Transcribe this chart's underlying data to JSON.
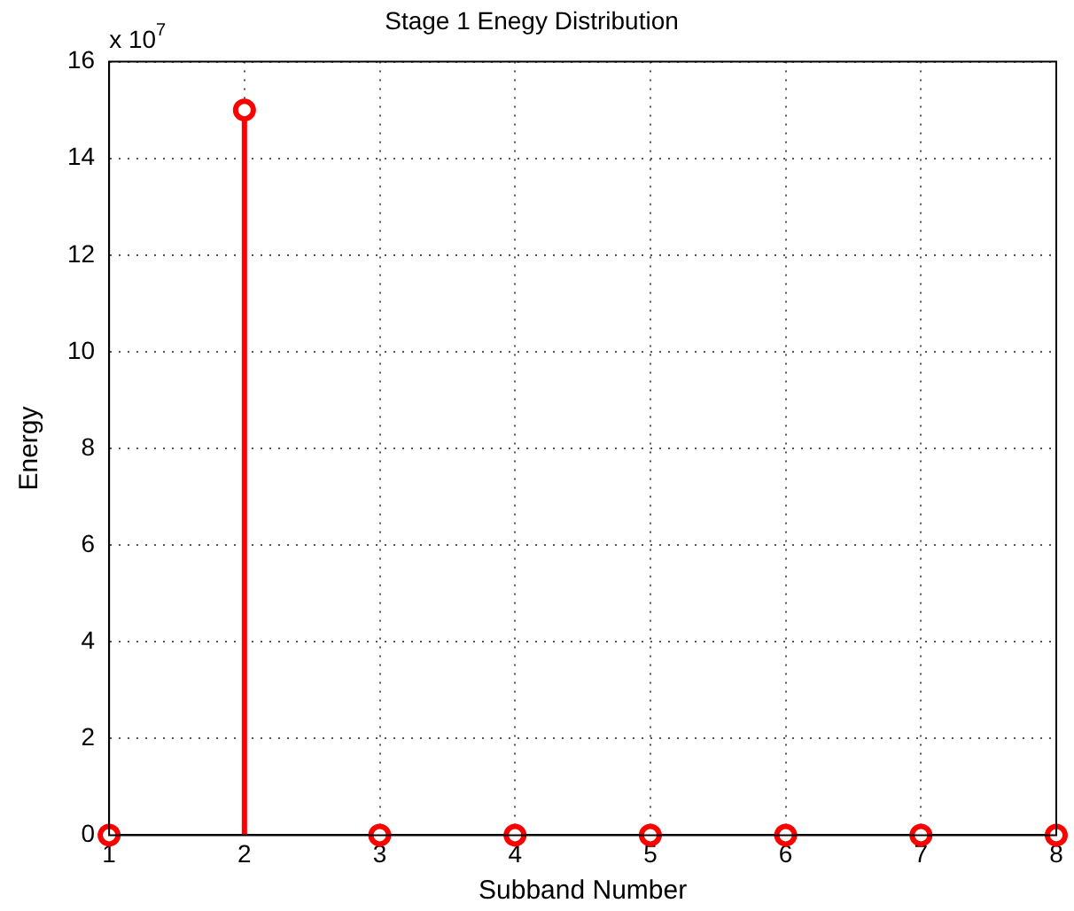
{
  "chart_data": {
    "type": "lollipop",
    "title": "Stage 1 Enegy Distribution",
    "xlabel": "Subband Number",
    "ylabel": "Energy",
    "annotations": [
      "x 10$^{7}$"
    ],
    "x": [
      1,
      2,
      3,
      4,
      5,
      6,
      7,
      8
    ],
    "series": [
      {
        "color": "#ff0000",
        "values": [
          0,
          15,
          0,
          0,
          0,
          0,
          0,
          0
        ]
      }
    ],
    "xlim": [
      1,
      8
    ],
    "xticks": [
      1,
      2,
      3,
      4,
      5,
      6,
      7,
      8
    ],
    "ylim": [
      0,
      16
    ],
    "yticks": [
      0,
      2,
      4,
      6,
      8,
      10,
      12,
      14,
      16
    ],
    "grid": true,
    "marker": "circle",
    "legend": false
  }
}
